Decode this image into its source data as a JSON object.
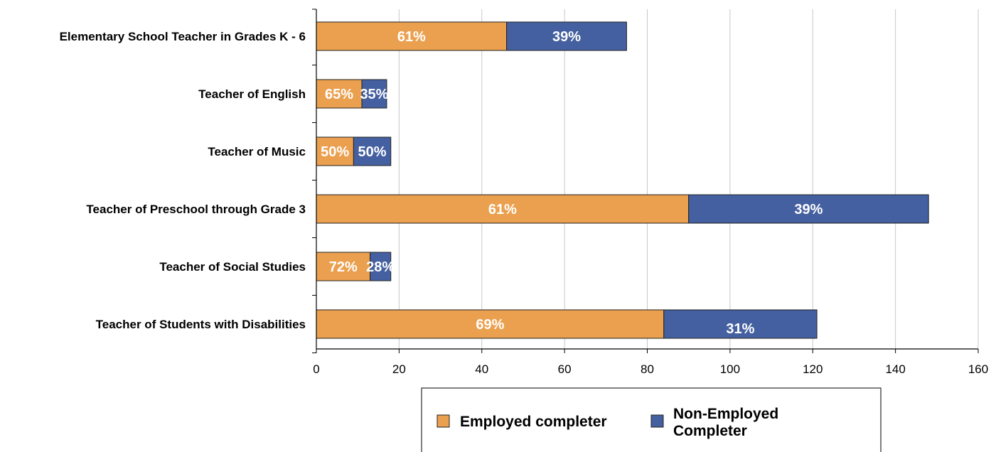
{
  "chart_data": {
    "type": "bar",
    "orientation": "horizontal",
    "stacked": true,
    "categories": [
      "Elementary School Teacher in Grades K - 6",
      "Teacher of English",
      "Teacher of Music",
      "Teacher of Preschool through Grade 3",
      "Teacher of Social Studies",
      "Teacher of Students with Disabilities"
    ],
    "series": [
      {
        "name": "Employed completer",
        "color": "#EBA04F",
        "values": [
          46,
          11,
          9,
          90,
          13,
          84
        ],
        "labels": [
          "61%",
          "65%",
          "50%",
          "61%",
          "72%",
          "69%"
        ]
      },
      {
        "name": "Non-Employed Completer",
        "color": "#4460A0",
        "values": [
          29,
          6,
          9,
          58,
          5,
          37
        ],
        "labels": [
          "39%",
          "35%",
          "50%",
          "39%",
          "28%",
          "31%"
        ]
      }
    ],
    "x_ticks": [
      "0",
      "20",
      "40",
      "60",
      "80",
      "100",
      "120",
      "140",
      "160"
    ],
    "xlim": [
      0,
      160
    ],
    "grid": "vertical",
    "legend": {
      "position": "bottom",
      "entries": [
        {
          "lines": [
            "Employed completer"
          ]
        },
        {
          "lines": [
            "Non-Employed",
            "Completer"
          ]
        }
      ]
    }
  }
}
